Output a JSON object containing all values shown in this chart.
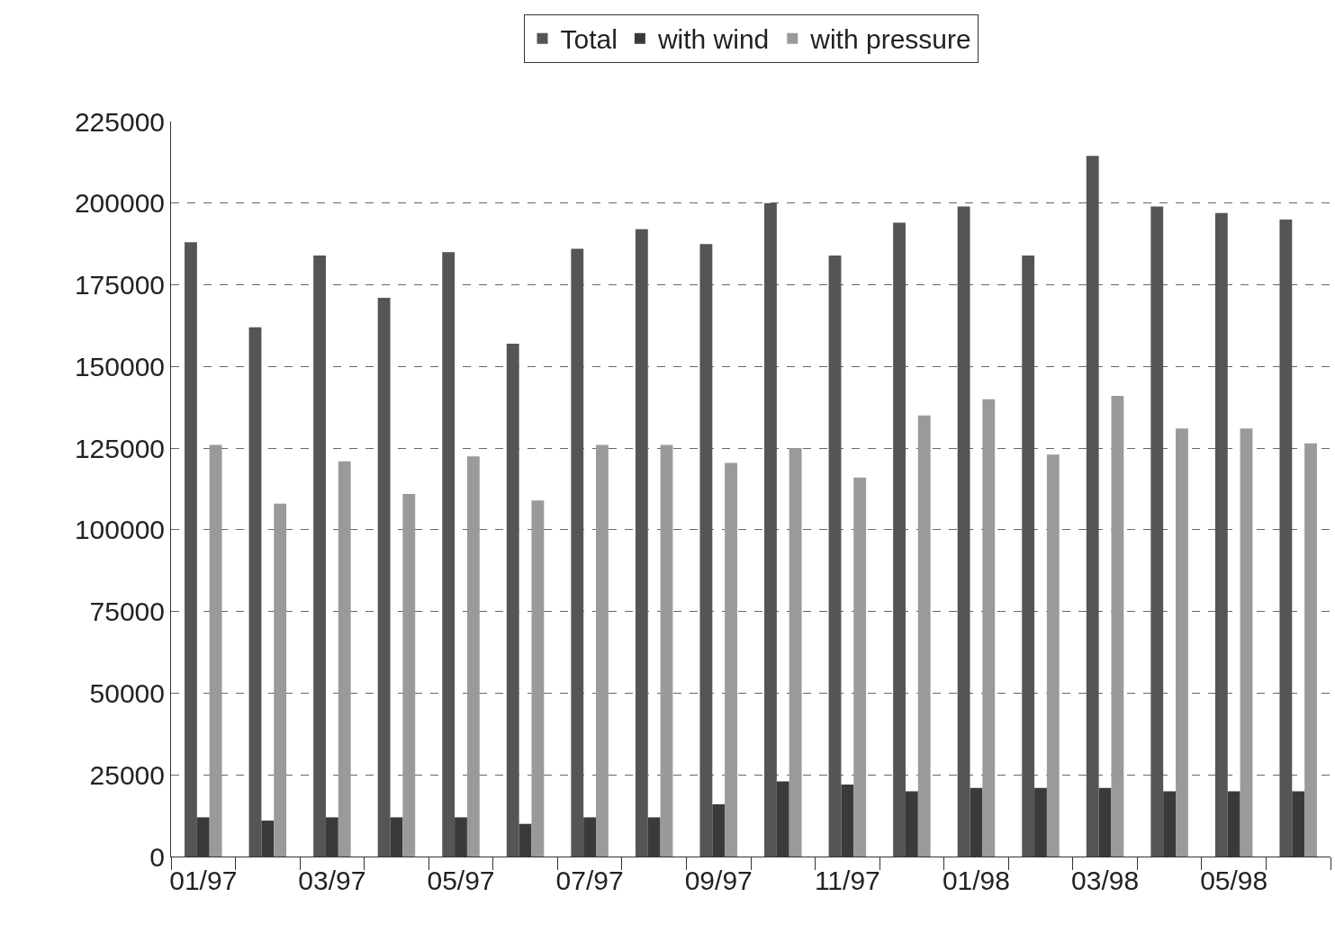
{
  "chart_data": {
    "type": "bar",
    "categories": [
      "01/97",
      null,
      "03/97",
      null,
      "05/97",
      null,
      "07/97",
      null,
      "09/97",
      null,
      "11/97",
      null,
      "01/98",
      null,
      "03/98",
      null,
      "05/98",
      null
    ],
    "series": [
      {
        "name": "Total",
        "color": "#555555",
        "values": [
          188000,
          162000,
          184000,
          171000,
          185000,
          157000,
          186000,
          192000,
          187500,
          200000,
          184000,
          194000,
          199000,
          184000,
          214500,
          199000,
          197000,
          195000
        ]
      },
      {
        "name": "with wind",
        "color": "#3a3a3a",
        "values": [
          12000,
          11000,
          12000,
          12000,
          12000,
          10000,
          12000,
          12000,
          16000,
          23000,
          22000,
          20000,
          21000,
          21000,
          21000,
          20000,
          20000,
          20000
        ]
      },
      {
        "name": "with pressure",
        "color": "#9a9a9a",
        "values": [
          126000,
          108000,
          121000,
          111000,
          122500,
          109000,
          126000,
          126000,
          120500,
          125000,
          116000,
          135000,
          140000,
          123000,
          141000,
          131000,
          131000,
          126500
        ]
      }
    ],
    "ylim": [
      0,
      225000
    ],
    "yticks": [
      0,
      25000,
      50000,
      75000,
      100000,
      125000,
      150000,
      175000,
      200000,
      225000
    ],
    "grid": "y",
    "legend": "top"
  }
}
